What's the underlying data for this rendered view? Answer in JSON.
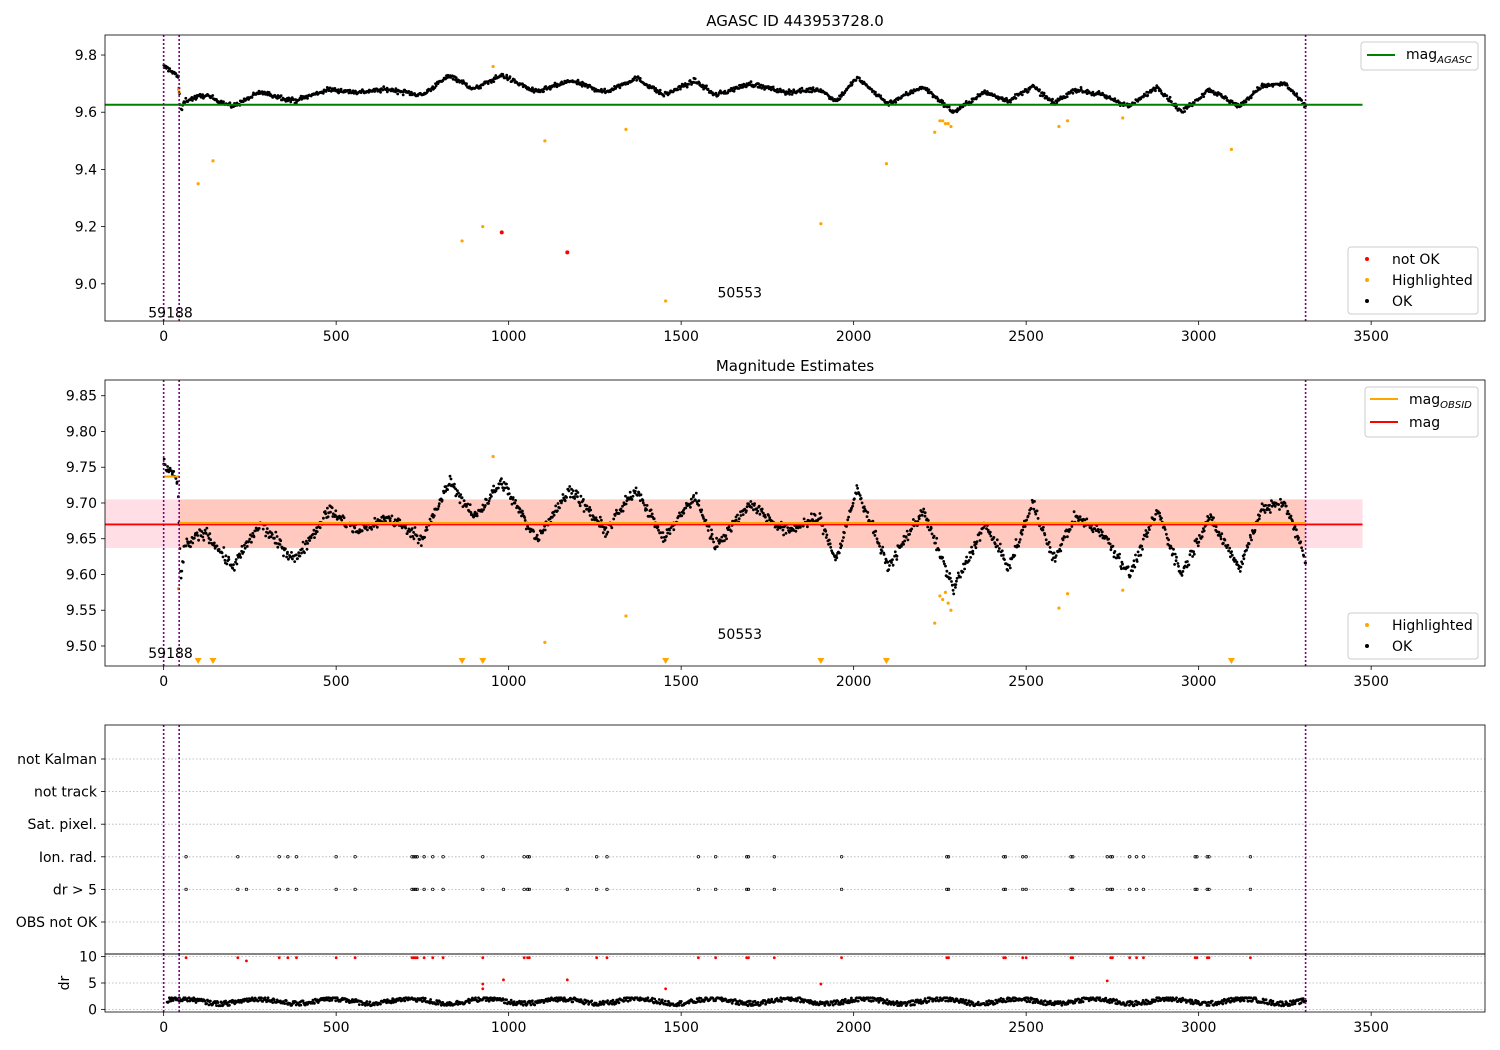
{
  "figure": {
    "title": "AGASC ID 443953728.0"
  },
  "chart_data": [
    {
      "type": "scatter",
      "title": "AGASC ID 443953728.0",
      "xlabel": "",
      "ylabel": "",
      "xlim": [
        -170,
        3830
      ],
      "ylim": [
        8.87,
        9.87
      ],
      "xticks": [
        0,
        500,
        1000,
        1500,
        2000,
        2500,
        3000,
        3500
      ],
      "yticks": [
        9.0,
        9.2,
        9.4,
        9.6,
        9.8
      ],
      "ytick_labels": [
        "9.0",
        "9.2",
        "9.4",
        "9.6",
        "9.8"
      ],
      "vlines": [
        0,
        45,
        3310
      ],
      "hline": {
        "name": "mag_AGASC",
        "y": 9.626,
        "x_range": [
          -170,
          3475
        ],
        "color": "#008000"
      },
      "annotations": [
        {
          "text": "59188",
          "x": 20,
          "y": 8.9
        },
        {
          "text": "50553",
          "x": 1670,
          "y": 8.97
        }
      ],
      "legend_top": {
        "placement": "upper-right",
        "entries": [
          {
            "label_main": "mag",
            "label_sub": "AGASC",
            "color": "#008000",
            "marker": "line"
          }
        ]
      },
      "legend_bottom": {
        "placement": "lower-right",
        "entries": [
          {
            "label": "not OK",
            "color": "#ff0000",
            "marker": "dot"
          },
          {
            "label": "Highlighted",
            "color": "#ffa500",
            "marker": "dot"
          },
          {
            "label": "OK",
            "color": "#000000",
            "marker": "dot"
          }
        ]
      },
      "series": [
        {
          "name": "OK",
          "color": "#000000",
          "trend": {
            "x": [
              0,
              30,
              42,
              50,
              60,
              120,
              200,
              280,
              380,
              480,
              560,
              650,
              750,
              830,
              900,
              980,
              1080,
              1180,
              1280,
              1370,
              1450,
              1540,
              1600,
              1700,
              1800,
              1900,
              1950,
              2010,
              2100,
              2200,
              2290,
              2380,
              2450,
              2520,
              2580,
              2640,
              2720,
              2800,
              2880,
              2950,
              3030,
              3120,
              3180,
              3250,
              3310
            ],
            "y": [
              9.76,
              9.74,
              9.72,
              9.6,
              9.64,
              9.66,
              9.62,
              9.67,
              9.64,
              9.68,
              9.67,
              9.68,
              9.66,
              9.73,
              9.68,
              9.73,
              9.67,
              9.71,
              9.67,
              9.72,
              9.66,
              9.71,
              9.66,
              9.7,
              9.67,
              9.68,
              9.64,
              9.72,
              9.63,
              9.69,
              9.6,
              9.67,
              9.64,
              9.69,
              9.63,
              9.68,
              9.66,
              9.62,
              9.69,
              9.6,
              9.68,
              9.62,
              9.69,
              9.7,
              9.62
            ]
          },
          "noise": 0.012,
          "count": 1500
        },
        {
          "name": "Highlighted",
          "color": "#ffa500",
          "points": [
            [
              43,
              9.68
            ],
            [
              45,
              9.67
            ],
            [
              100,
              9.35
            ],
            [
              143,
              9.43
            ],
            [
              865,
              9.15
            ],
            [
              925,
              9.2
            ],
            [
              955,
              9.76
            ],
            [
              1105,
              9.5
            ],
            [
              1340,
              9.54
            ],
            [
              1455,
              8.94
            ],
            [
              1905,
              9.21
            ],
            [
              2095,
              9.42
            ],
            [
              2235,
              9.53
            ],
            [
              2250,
              9.57
            ],
            [
              2258,
              9.57
            ],
            [
              2266,
              9.56
            ],
            [
              2274,
              9.56
            ],
            [
              2282,
              9.55
            ],
            [
              2595,
              9.55
            ],
            [
              2620,
              9.57
            ],
            [
              2780,
              9.58
            ],
            [
              3095,
              9.47
            ]
          ]
        },
        {
          "name": "not OK",
          "color": "#ff0000",
          "points": [
            [
              980,
              9.18
            ],
            [
              1170,
              9.11
            ]
          ]
        }
      ]
    },
    {
      "type": "scatter",
      "title": "Magnitude Estimates",
      "xlabel": "",
      "ylabel": "",
      "xlim": [
        -170,
        3830
      ],
      "ylim": [
        9.472,
        9.872
      ],
      "xticks": [
        0,
        500,
        1000,
        1500,
        2000,
        2500,
        3000,
        3500
      ],
      "yticks": [
        9.5,
        9.55,
        9.6,
        9.65,
        9.7,
        9.75,
        9.8,
        9.85
      ],
      "ytick_labels": [
        "9.50",
        "9.55",
        "9.60",
        "9.65",
        "9.70",
        "9.75",
        "9.80",
        "9.85"
      ],
      "vlines": [
        0,
        45,
        3310
      ],
      "mag_line": {
        "name": "mag",
        "y": 9.67,
        "x_range": [
          -170,
          3475
        ],
        "color": "#ff0000"
      },
      "mag_band": {
        "y_low": 9.637,
        "y_high": 9.705,
        "x_range": [
          -170,
          3475
        ],
        "color": "#ffc0cb"
      },
      "obsid_segments": {
        "name": "mag_OBSID",
        "color": "#ffa500",
        "segments": [
          [
            0,
            45,
            9.737
          ],
          [
            45,
            3310,
            9.672
          ]
        ]
      },
      "obsid_band": {
        "y_low": 9.637,
        "y_high": 9.705,
        "x_range": [
          45,
          3310
        ],
        "color": "#ffa07a"
      },
      "annotations": [
        {
          "text": "59188",
          "x": 20,
          "y": 9.49
        },
        {
          "text": "50553",
          "x": 1670,
          "y": 9.517
        }
      ],
      "lower_markers": {
        "color": "#ffa500",
        "marker": "triangle-down",
        "x": [
          100,
          143,
          865,
          925,
          1455,
          1905,
          2095,
          3095
        ]
      },
      "legend_top": {
        "placement": "upper-right",
        "entries": [
          {
            "label_main": "mag",
            "label_sub": "OBSID",
            "color": "#ffa500",
            "marker": "line"
          },
          {
            "label_main": "mag",
            "label_sub": "",
            "color": "#ff0000",
            "marker": "line"
          }
        ]
      },
      "legend_bottom": {
        "placement": "lower-right",
        "entries": [
          {
            "label": "Highlighted",
            "color": "#ffa500",
            "marker": "dot"
          },
          {
            "label": "OK",
            "color": "#000000",
            "marker": "dot"
          }
        ]
      },
      "series": [
        {
          "name": "OK",
          "color": "#000000",
          "trend": {
            "x": [
              0,
              30,
              42,
              50,
              60,
              120,
              200,
              280,
              380,
              480,
              560,
              650,
              750,
              830,
              900,
              980,
              1080,
              1180,
              1280,
              1370,
              1450,
              1540,
              1600,
              1700,
              1800,
              1900,
              1950,
              2010,
              2100,
              2200,
              2290,
              2380,
              2450,
              2520,
              2580,
              2640,
              2720,
              2800,
              2880,
              2950,
              3030,
              3120,
              3180,
              3250,
              3310
            ],
            "y": [
              9.755,
              9.74,
              9.72,
              9.59,
              9.64,
              9.66,
              9.61,
              9.67,
              9.62,
              9.69,
              9.66,
              9.68,
              9.65,
              9.73,
              9.68,
              9.73,
              9.65,
              9.72,
              9.66,
              9.72,
              9.65,
              9.71,
              9.64,
              9.7,
              9.66,
              9.68,
              9.62,
              9.72,
              9.61,
              9.69,
              9.58,
              9.67,
              9.61,
              9.7,
              9.62,
              9.68,
              9.66,
              9.6,
              9.69,
              9.6,
              9.68,
              9.61,
              9.69,
              9.7,
              9.62
            ]
          },
          "noise": 0.012,
          "count": 1500
        },
        {
          "name": "Highlighted",
          "color": "#ffa500",
          "points": [
            [
              43,
              9.58
            ],
            [
              955,
              9.765
            ],
            [
              1105,
              9.505
            ],
            [
              1340,
              9.542
            ],
            [
              2235,
              9.532
            ],
            [
              2250,
              9.57
            ],
            [
              2258,
              9.565
            ],
            [
              2266,
              9.575
            ],
            [
              2274,
              9.56
            ],
            [
              2282,
              9.55
            ],
            [
              2595,
              9.553
            ],
            [
              2620,
              9.573
            ],
            [
              2780,
              9.578
            ]
          ]
        }
      ]
    },
    {
      "type": "scatter",
      "title": "",
      "xlabel": "",
      "ylabel": "",
      "xlim": [
        -170,
        3830
      ],
      "category_rows": [
        "not Kalman",
        "not track",
        "Sat. pixel.",
        "Ion. rad.",
        "dr > 5",
        "OBS not OK"
      ],
      "vlines": [
        0,
        45,
        3310
      ],
      "flag_points": {
        "Ion. rad.": [
          65,
          215,
          335,
          360,
          385,
          500,
          555,
          720,
          725,
          730,
          735,
          755,
          780,
          810,
          925,
          1045,
          1055,
          1060,
          1255,
          1285,
          1550,
          1600,
          1690,
          1695,
          1770,
          1965,
          2270,
          2275,
          2435,
          2440,
          2490,
          2500,
          2630,
          2635,
          2735,
          2745,
          2750,
          2800,
          2820,
          2840,
          2990,
          2995,
          3025,
          3030,
          3150
        ],
        "dr > 5": [
          65,
          215,
          240,
          335,
          360,
          385,
          500,
          555,
          720,
          725,
          730,
          735,
          755,
          780,
          810,
          925,
          985,
          1045,
          1055,
          1060,
          1170,
          1255,
          1285,
          1550,
          1600,
          1690,
          1695,
          1770,
          1965,
          2270,
          2275,
          2435,
          2440,
          2490,
          2500,
          2630,
          2635,
          2735,
          2745,
          2750,
          2800,
          2820,
          2840,
          2990,
          2995,
          3025,
          3030,
          3150
        ]
      }
    },
    {
      "type": "scatter",
      "title": "",
      "xlabel": "",
      "ylabel": "dr",
      "xlim": [
        -170,
        3830
      ],
      "ylim": [
        -0.5,
        10.5
      ],
      "yticks": [
        0,
        5,
        10
      ],
      "ytick_labels": [
        "0",
        "5",
        "10"
      ],
      "vlines": [
        0,
        45,
        3310
      ],
      "series": [
        {
          "name": "OK",
          "color": "#000000",
          "y_min": 0.2,
          "y_max": 2.0,
          "count": 1500
        },
        {
          "name": "not OK",
          "color": "#ff0000",
          "points": [
            [
              65,
              9.8
            ],
            [
              215,
              9.8
            ],
            [
              240,
              9.2
            ],
            [
              335,
              9.8
            ],
            [
              360,
              9.8
            ],
            [
              385,
              9.8
            ],
            [
              500,
              9.8
            ],
            [
              555,
              9.8
            ],
            [
              720,
              9.8
            ],
            [
              725,
              9.8
            ],
            [
              730,
              9.8
            ],
            [
              735,
              9.8
            ],
            [
              755,
              9.8
            ],
            [
              780,
              9.8
            ],
            [
              810,
              9.8
            ],
            [
              925,
              9.8
            ],
            [
              925,
              4.8
            ],
            [
              925,
              3.9
            ],
            [
              985,
              5.6
            ],
            [
              1045,
              9.8
            ],
            [
              1055,
              9.8
            ],
            [
              1060,
              9.8
            ],
            [
              1170,
              5.6
            ],
            [
              1255,
              9.8
            ],
            [
              1285,
              9.8
            ],
            [
              1455,
              3.9
            ],
            [
              1550,
              9.8
            ],
            [
              1600,
              9.8
            ],
            [
              1690,
              9.8
            ],
            [
              1695,
              9.8
            ],
            [
              1770,
              9.8
            ],
            [
              1905,
              4.8
            ],
            [
              1965,
              9.8
            ],
            [
              2270,
              9.8
            ],
            [
              2275,
              9.8
            ],
            [
              2435,
              9.8
            ],
            [
              2440,
              9.8
            ],
            [
              2490,
              9.8
            ],
            [
              2500,
              9.8
            ],
            [
              2630,
              9.8
            ],
            [
              2635,
              9.8
            ],
            [
              2735,
              5.4
            ],
            [
              2745,
              9.8
            ],
            [
              2750,
              9.8
            ],
            [
              2800,
              9.8
            ],
            [
              2820,
              9.8
            ],
            [
              2840,
              9.8
            ],
            [
              2990,
              9.8
            ],
            [
              2995,
              9.8
            ],
            [
              3025,
              9.8
            ],
            [
              3030,
              9.8
            ],
            [
              3150,
              9.8
            ]
          ]
        }
      ]
    }
  ]
}
